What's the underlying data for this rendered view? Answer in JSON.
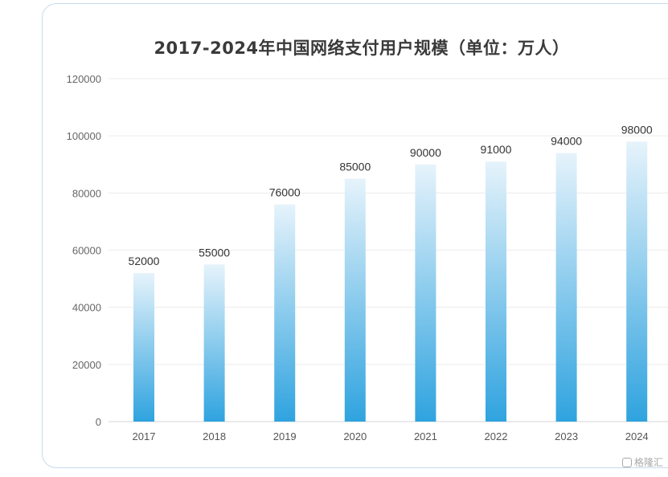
{
  "chart_data": {
    "type": "bar",
    "title": "2017-2024年中国网络支付用户规模（单位：万人）",
    "categories": [
      "2017",
      "2018",
      "2019",
      "2020",
      "2021",
      "2022",
      "2023",
      "2024"
    ],
    "values": [
      52000,
      55000,
      76000,
      85000,
      90000,
      91000,
      94000,
      98000
    ],
    "data_labels": [
      "52000",
      "55000",
      "76000",
      "85000",
      "90000",
      "91000",
      "94000",
      "98000"
    ],
    "y_ticks": [
      "0",
      "20000",
      "40000",
      "60000",
      "80000",
      "100000",
      "120000"
    ],
    "ylim": [
      0,
      120000
    ],
    "grid": true,
    "legend": "none",
    "bar_gradient": [
      "#e6f3fb",
      "#2fa3df"
    ]
  },
  "watermark": {
    "text": "格隆汇"
  }
}
